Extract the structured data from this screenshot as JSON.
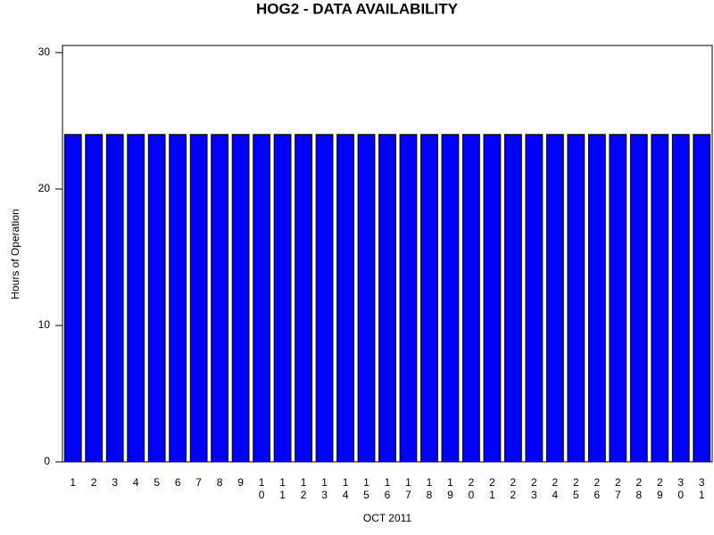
{
  "chart_data": {
    "type": "bar",
    "title": "HOG2 - DATA AVAILABILITY",
    "x_label": "OCT 2011",
    "y_label": "Hours of Operation",
    "categories": [
      "1",
      "2",
      "3",
      "4",
      "5",
      "6",
      "7",
      "8",
      "9",
      "10",
      "11",
      "12",
      "13",
      "14",
      "15",
      "16",
      "17",
      "18",
      "19",
      "20",
      "21",
      "22",
      "23",
      "24",
      "25",
      "26",
      "27",
      "28",
      "29",
      "30",
      "31"
    ],
    "values": [
      24,
      24,
      24,
      24,
      24,
      24,
      24,
      24,
      24,
      24,
      24,
      24,
      24,
      24,
      24,
      24,
      24,
      24,
      24,
      24,
      24,
      24,
      24,
      24,
      24,
      24,
      24,
      24,
      24,
      24,
      24
    ],
    "color": "#0000ff",
    "ylim": [
      0,
      30
    ],
    "yticks": [
      0,
      10,
      20,
      30
    ],
    "grid": false
  }
}
